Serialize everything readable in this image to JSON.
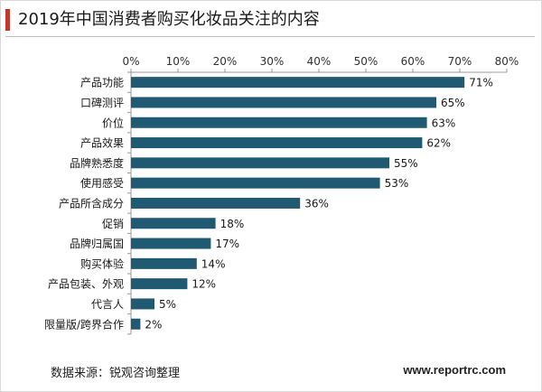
{
  "title": "2019年中国消费者购买化妆品关注的内容",
  "source": "数据来源：锐观咨询整理",
  "website": "www.reportrc.com",
  "colors": {
    "bar": "#1f5a72",
    "accent": "#c0392b"
  },
  "chart_data": {
    "type": "bar",
    "orientation": "horizontal",
    "categories": [
      "产品功能",
      "口碑测评",
      "价位",
      "产品效果",
      "品牌熟悉度",
      "使用感受",
      "产品所含成分",
      "促销",
      "品牌归属国",
      "购买体验",
      "产品包装、外观",
      "代言人",
      "限量版/跨界合作"
    ],
    "values": [
      71,
      65,
      63,
      62,
      55,
      53,
      36,
      18,
      17,
      14,
      12,
      5,
      2
    ],
    "value_labels": [
      "71%",
      "65%",
      "63%",
      "62%",
      "55%",
      "53%",
      "36%",
      "18%",
      "17%",
      "14%",
      "12%",
      "5%",
      "2%"
    ],
    "xlim": [
      0,
      80
    ],
    "xticks": [
      0,
      10,
      20,
      30,
      40,
      50,
      60,
      70,
      80
    ],
    "xtick_labels": [
      "0%",
      "10%",
      "20%",
      "30%",
      "40%",
      "50%",
      "60%",
      "70%",
      "80%"
    ],
    "axis_position": "top",
    "grid": false,
    "legend": "none"
  }
}
